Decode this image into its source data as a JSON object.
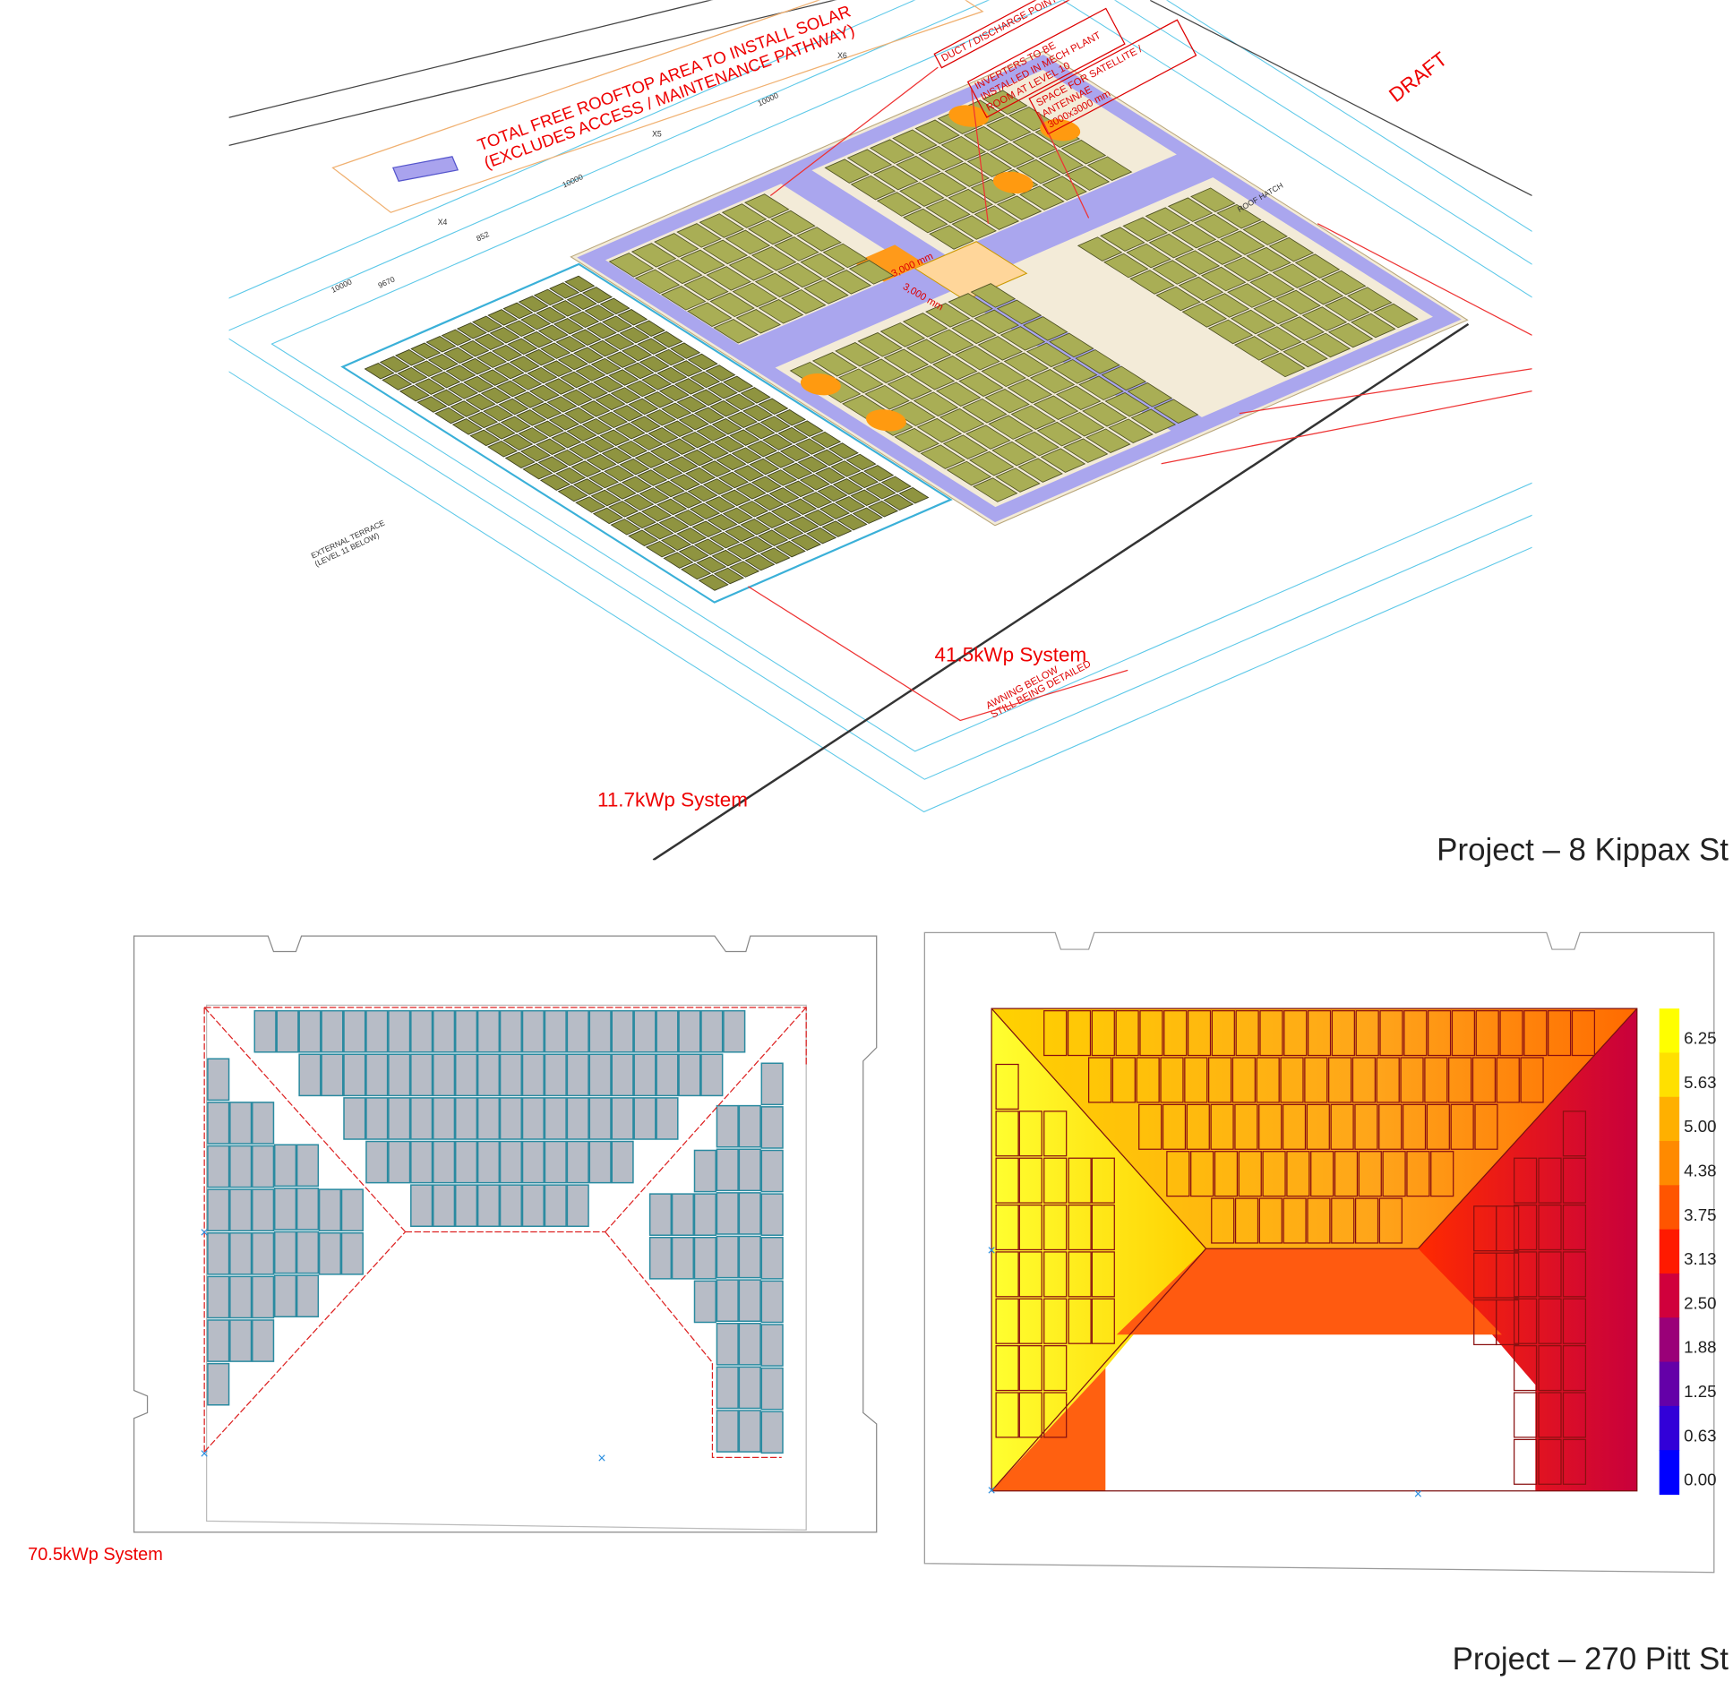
{
  "kippax": {
    "title_lines": [
      "TOTAL FREE ROOFTOP AREA TO INSTALL SOLAR",
      "(EXCLUDES ACCESS / MAINTENANCE PATHWAY)"
    ],
    "duct": "DUCT / DISCHARGE POINT",
    "inverters": [
      "INVERTERS TO BE",
      "INSTALLED IN MECH PLANT",
      "ROOM AT LEVEL 10"
    ],
    "satellite": [
      "SPACE FOR SATELLITE /",
      "ANTENNAE",
      "3000x3000 mm"
    ],
    "draft": "DRAFT",
    "roof_hatch": "ROOF HATCH",
    "terrace": [
      "EXTERNAL TERRACE",
      "(LEVEL 11 BELOW)"
    ],
    "awning": [
      "AWNING BELOW",
      "STILL BEING DETAILED"
    ],
    "dimensions": [
      "10000",
      "9670",
      "852",
      "10000",
      "10000"
    ],
    "grid_labels": [
      "X4",
      "X5",
      "X6"
    ],
    "space_dims": [
      "3,000 mm",
      "3,000 mm"
    ],
    "systems": [
      "41.5kWp System",
      "11.7kWp System"
    ],
    "caption": "Project – 8 Kippax St"
  },
  "pitt": {
    "system": "70.5kWp System",
    "colorbar": [
      "6.25",
      "5.63",
      "5.00",
      "4.38",
      "3.75",
      "3.13",
      "2.50",
      "1.88",
      "1.25",
      "0.63",
      "0.00"
    ],
    "caption": "Project – 270 Pitt St"
  }
}
